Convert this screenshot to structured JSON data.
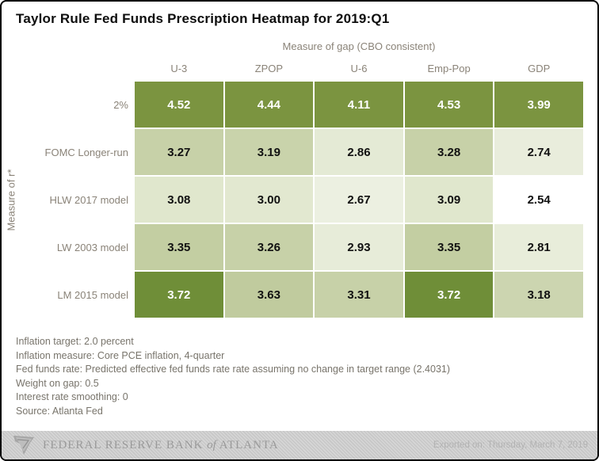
{
  "title": "Taylor Rule Fed Funds Prescription Heatmap for 2019:Q1",
  "chart_data": {
    "type": "heatmap",
    "title": "Taylor Rule Fed Funds Prescription Heatmap for 2019:Q1",
    "x_axis_label": "Measure of gap (CBO consistent)",
    "y_axis_label": "Measure of r*",
    "columns": [
      "U-3",
      "ZPOP",
      "U-6",
      "Emp-Pop",
      "GDP"
    ],
    "rows": [
      "2%",
      "FOMC Longer-run",
      "HLW 2017 model",
      "LW 2003 model",
      "LM 2015 model"
    ],
    "values": [
      [
        4.52,
        4.44,
        4.11,
        4.53,
        3.99
      ],
      [
        3.27,
        3.19,
        2.86,
        3.28,
        2.74
      ],
      [
        3.08,
        3.0,
        2.67,
        3.09,
        2.54
      ],
      [
        3.35,
        3.26,
        2.93,
        3.35,
        2.81
      ],
      [
        3.72,
        3.63,
        3.31,
        3.72,
        3.18
      ]
    ],
    "cell_colors": [
      [
        "#7b9440",
        "#7b9440",
        "#7b9440",
        "#7b9440",
        "#7b9440"
      ],
      [
        "#c7d1a8",
        "#c9d3ab",
        "#e4ead5",
        "#c7d1a8",
        "#e9eddc"
      ],
      [
        "#e0e7cd",
        "#e2e8d0",
        "#ecf0e1",
        "#e0e7cd",
        "#ffffff"
      ],
      [
        "#c3cea2",
        "#c7d1a8",
        "#e7ecd9",
        "#c3cea2",
        "#e8edda"
      ],
      [
        "#6f8e38",
        "#c0cb9e",
        "#c7d1a8",
        "#6f8e38",
        "#ccd5b0"
      ]
    ],
    "colorscale": {
      "min_value": 2.54,
      "max_value": 4.53,
      "min_color": "#ffffff",
      "max_color": "#7b9440"
    },
    "value_decimals": 2
  },
  "notes": [
    "Inflation target: 2.0 percent",
    "Inflation measure: Core PCE inflation, 4-quarter",
    "Fed funds rate: Predicted effective fed funds rate rate assuming no change in target range (2.4031)",
    "Weight on gap: 0.5",
    "Interest rate smoothing: 0",
    "Source: Atlanta Fed"
  ],
  "footer": {
    "bank_name": "FEDERAL RESERVE BANK",
    "bank_name_connector": "of",
    "bank_name_location": "ATLANTA",
    "exported_label": "Exported on: Thursday, March 7, 2019"
  }
}
